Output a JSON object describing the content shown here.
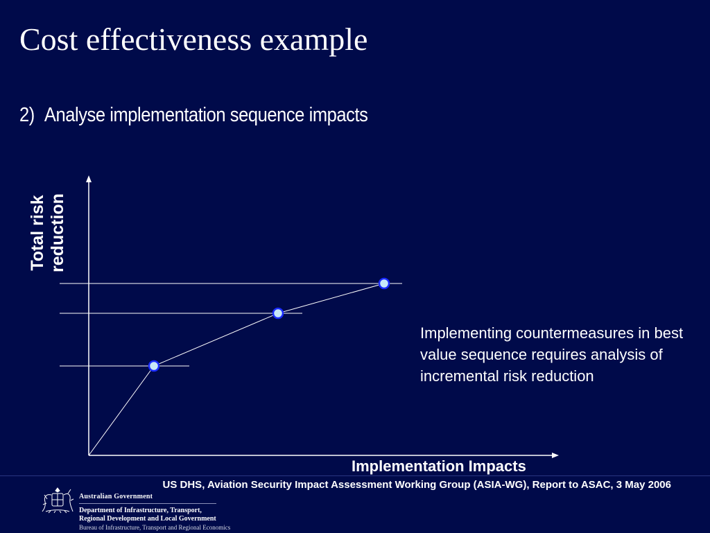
{
  "slide": {
    "title": "Cost effectiveness example",
    "subtitle_number": "2)",
    "subtitle_text": "Analyse implementation sequence impacts"
  },
  "diagram": {
    "y_axis_label_line1": "Total risk",
    "y_axis_label_line2": "reduction",
    "x_axis_label": "Implementation Impacts",
    "note": "Implementing countermeasures in best value sequence requires analysis of incremental risk reduction"
  },
  "footer": {
    "citation": "US DHS, Aviation Security Impact Assessment Working Group (ASIA-WG), Report to ASAC, 3 May 2006",
    "gov_name": "Australian Government",
    "dept_line1": "Department of Infrastructure, Transport,",
    "dept_line2": "Regional Development and Local Government",
    "bureau": "Bureau of Infrastructure, Transport and Regional Economics"
  },
  "colors": {
    "background": "#000a4a",
    "line": "#ffffff",
    "point_fill": "#c8e8f8",
    "point_stroke": "#1a2bff"
  }
}
